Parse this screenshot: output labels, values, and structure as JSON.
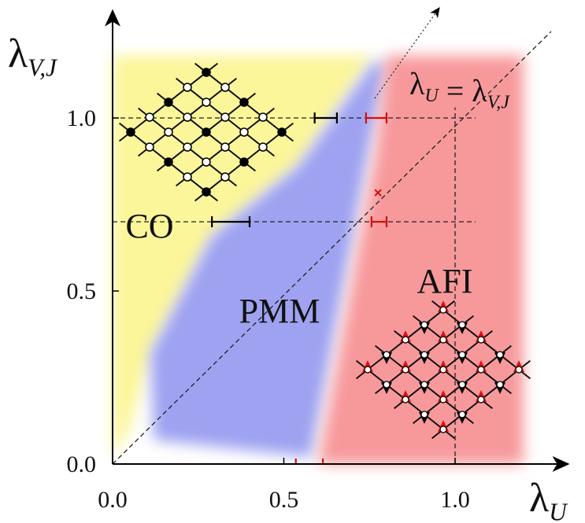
{
  "chart_data": {
    "type": "phase_diagram",
    "x_label": {
      "symbol": "λ",
      "sub": "U"
    },
    "y_label": {
      "symbol": "λ",
      "sub": "V,J"
    },
    "annotation": [
      "λ",
      "U",
      " = λ",
      "V,J"
    ],
    "xlim": [
      0,
      1.33
    ],
    "ylim": [
      0,
      1.31
    ],
    "xticks": [
      {
        "value": 0,
        "label": "0.0"
      },
      0.5,
      {
        "value": 1,
        "label": "1.0"
      }
    ],
    "yticks": [
      {
        "value": 0,
        "label": "0.0"
      },
      0.5,
      {
        "value": 1,
        "label": "1.0"
      }
    ],
    "regions": [
      {
        "label": "CO",
        "color": "#fbf69a",
        "boundary": [
          [
            0,
            0.02
          ],
          [
            0,
            1.18
          ],
          [
            0.76,
            1.18
          ],
          [
            0.54,
            0.86
          ],
          [
            0.29,
            0.66
          ],
          [
            0.11,
            0.32
          ],
          [
            0.05,
            0.1
          ]
        ]
      },
      {
        "label": "PMM",
        "color": "#9ea2f0",
        "boundary": [
          [
            0.12,
            0.07
          ],
          [
            0.11,
            0.32
          ],
          [
            0.29,
            0.66
          ],
          [
            0.54,
            0.86
          ],
          [
            0.76,
            1.16
          ],
          [
            0.8,
            1.16
          ],
          [
            0.75,
            0.91
          ],
          [
            0.58,
            0.02
          ],
          [
            0.3,
            0.05
          ]
        ]
      },
      {
        "label": "AFI",
        "color": "#f7999b",
        "boundary": [
          [
            0.6,
            0.0
          ],
          [
            1.2,
            0.0
          ],
          [
            1.2,
            1.18
          ],
          [
            0.8,
            1.18
          ],
          [
            0.77,
            0.91
          ]
        ]
      }
    ],
    "hlines": [
      1.0,
      0.7
    ],
    "vline": 1.0,
    "vline_top": 1.03,
    "hline_end": 1.06,
    "error_bars": [
      {
        "y": 1.0,
        "x": [
          0.59,
          0.655
        ],
        "color": "#000000"
      },
      {
        "y": 1.0,
        "x": [
          0.74,
          0.8
        ],
        "color": "#d01010"
      },
      {
        "y": 0.7,
        "x": [
          0.29,
          0.4
        ],
        "color": "#000000"
      },
      {
        "y": 0.7,
        "x": [
          0.756,
          0.8
        ],
        "color": "#d01010"
      },
      {
        "y": 0.0,
        "x": [
          0.535,
          0.614
        ],
        "color": "#d01010"
      }
    ],
    "crossing": {
      "x": 0.775,
      "y": 0.784,
      "color": "#d01010"
    }
  }
}
